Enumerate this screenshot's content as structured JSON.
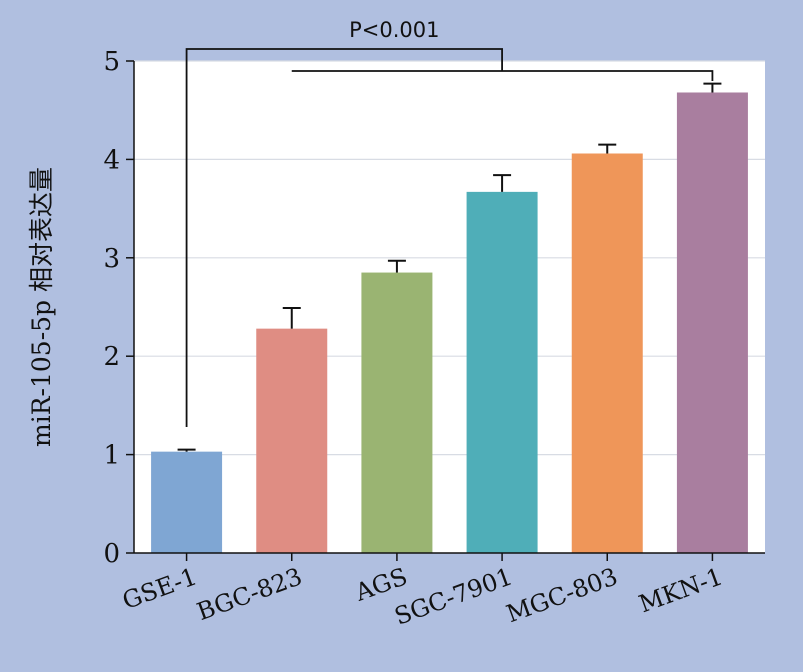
{
  "chart_data": {
    "type": "bar",
    "title": "",
    "xlabel": "",
    "ylabel": "miR-105-5p 相对表达量",
    "categories": [
      "GSE-1",
      "BGC-823",
      "AGS",
      "SGC-7901",
      "MGC-803",
      "MKN-1"
    ],
    "values": [
      1.03,
      2.28,
      2.85,
      3.67,
      4.06,
      4.68
    ],
    "errors": [
      0.02,
      0.21,
      0.12,
      0.17,
      0.09,
      0.09
    ],
    "colors": [
      "#7fa6d3",
      "#df8d83",
      "#9ab472",
      "#4faeb8",
      "#ef9659",
      "#a97e9f"
    ],
    "ylim": [
      0,
      5
    ],
    "yticks": [
      "0",
      "1",
      "2",
      "3",
      "4",
      "5"
    ],
    "grid": true,
    "annotation": "P<0.001"
  },
  "colors": {
    "background": "#b0bfe0",
    "plot_area": "#ffffff",
    "gridline": "#d8dce4",
    "axis": "#111111"
  }
}
